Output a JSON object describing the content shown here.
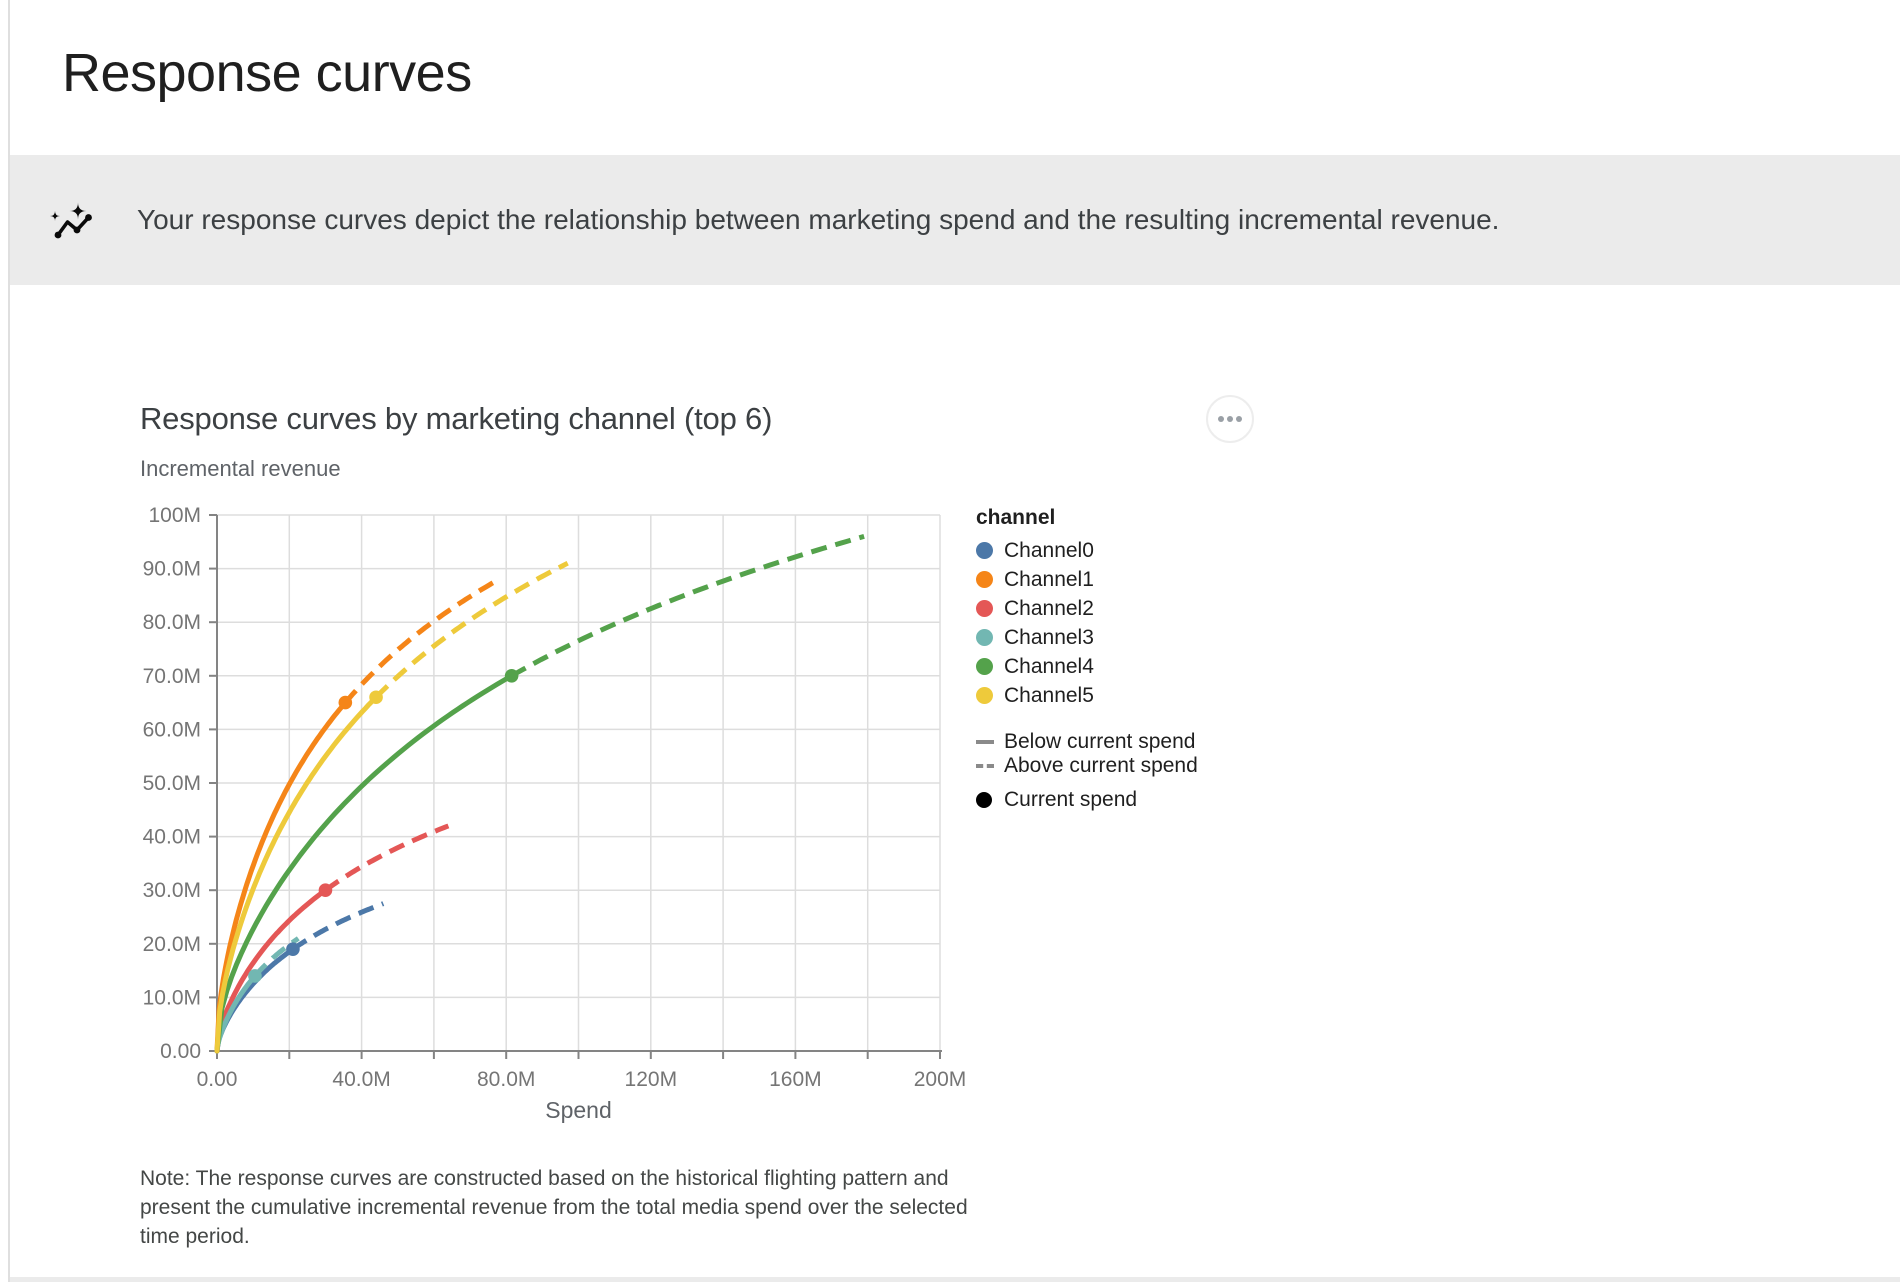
{
  "page": {
    "title": "Response curves",
    "banner": {
      "icon": "sparkline-insights-icon",
      "text": "Your response curves depict the relationship between marketing spend and the resulting incremental revenue."
    }
  },
  "card": {
    "title": "Response curves by marketing channel (top 6)",
    "menu_icon": "more-options-icon",
    "note": "Note: The response curves are constructed based on the historical flighting pattern and present the cumulative incremental revenue from the total media spend over the selected time period."
  },
  "legend": {
    "title": "channel",
    "line_styles": [
      {
        "label": "Below current spend",
        "style": "solid"
      },
      {
        "label": "Above current spend",
        "style": "dashed"
      }
    ],
    "point_style": {
      "label": "Current spend",
      "color": "#000000"
    },
    "swatch_gray": "#8a8a8a"
  },
  "chart_data": {
    "type": "line",
    "title": "Response curves by marketing channel (top 6)",
    "xlabel": "Spend",
    "ylabel": "Incremental revenue",
    "xlim": [
      0,
      200000000
    ],
    "ylim": [
      0,
      100000000
    ],
    "grid": true,
    "legend_position": "right",
    "x_grid_step": 20000000,
    "y_grid_step": 10000000,
    "x_tick_values": [
      0,
      40000000,
      80000000,
      120000000,
      160000000,
      200000000
    ],
    "x_tick_labels": [
      "0.00",
      "40.0M",
      "80.0M",
      "120M",
      "160M",
      "200M"
    ],
    "y_tick_values": [
      0,
      10000000,
      20000000,
      30000000,
      40000000,
      50000000,
      60000000,
      70000000,
      80000000,
      90000000,
      100000000
    ],
    "y_tick_labels": [
      "0.00",
      "10.0M",
      "20.0M",
      "30.0M",
      "40.0M",
      "50.0M",
      "60.0M",
      "70.0M",
      "80.0M",
      "90.0M",
      "100M"
    ],
    "series_note": "solid segment = below current spend, dashed segment = above current spend, dot = current spend",
    "series": [
      {
        "name": "Channel0",
        "color": "#4c78a8",
        "current_spend": {
          "x": 21000000,
          "y": 19000000
        },
        "curve_end": {
          "x": 46000000,
          "y": 27500000
        }
      },
      {
        "name": "Channel1",
        "color": "#f58518",
        "current_spend": {
          "x": 35500000,
          "y": 65000000
        },
        "curve_end": {
          "x": 78000000,
          "y": 88000000
        }
      },
      {
        "name": "Channel2",
        "color": "#e45756",
        "current_spend": {
          "x": 30000000,
          "y": 30000000
        },
        "curve_end": {
          "x": 64000000,
          "y": 42000000
        }
      },
      {
        "name": "Channel3",
        "color": "#72b7b2",
        "current_spend": {
          "x": 10500000,
          "y": 14000000
        },
        "curve_end": {
          "x": 22500000,
          "y": 21000000
        }
      },
      {
        "name": "Channel4",
        "color": "#54a24b",
        "current_spend": {
          "x": 81500000,
          "y": 70000000
        },
        "curve_end": {
          "x": 179000000,
          "y": 96000000
        }
      },
      {
        "name": "Channel5",
        "color": "#eeca3b",
        "current_spend": {
          "x": 44000000,
          "y": 66000000
        },
        "curve_end": {
          "x": 97000000,
          "y": 91000000
        }
      }
    ]
  },
  "style": {
    "grid_color": "#dddddd",
    "axis_color": "#848484",
    "tick_label_color": "#757575",
    "axis_title_color": "#5f6368",
    "banner_bg": "#ebebeb"
  }
}
